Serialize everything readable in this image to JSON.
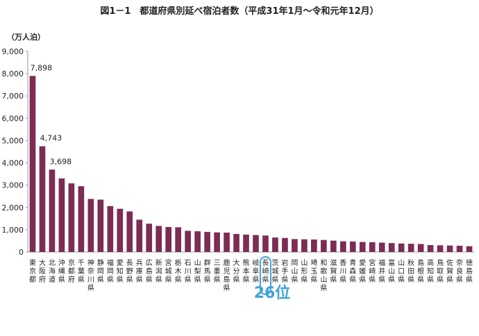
{
  "colors": {
    "bar": "#7b2d55",
    "highlight": "#3ea3d8",
    "axis": "#999999",
    "text": "#222222"
  },
  "rank_label": "26位",
  "chart_data": {
    "type": "bar",
    "title": "図1－1　都道府県別延べ宿泊者数（平成31年1月～令和元年12月）",
    "ylabel": "（万人泊）",
    "xlabel": "",
    "ylim": [
      0,
      9000
    ],
    "yticks": [
      0,
      1000,
      2000,
      3000,
      4000,
      5000,
      6000,
      7000,
      8000,
      9000
    ],
    "ytick_labels": [
      "0",
      "1,000",
      "2,000",
      "3,000",
      "4,000",
      "5,000",
      "6,000",
      "7,000",
      "8,000",
      "9,000"
    ],
    "grid": false,
    "categories": [
      "東京都",
      "大阪府",
      "北海道",
      "沖縄県",
      "京都府",
      "千葉県",
      "神奈川県",
      "静岡県",
      "福岡県",
      "愛知県",
      "長野県",
      "兵庫県",
      "広島県",
      "新潟県",
      "宮城県",
      "栃木県",
      "石川県",
      "山梨県",
      "群馬県",
      "三重県",
      "鹿児島県",
      "大分県",
      "熊本県",
      "岐阜県",
      "長崎県",
      "茨城県",
      "岩手県",
      "岡山県",
      "山形県",
      "埼玉県",
      "和歌山県",
      "滋賀県",
      "香川県",
      "青森県",
      "愛媛県",
      "宮崎県",
      "福井県",
      "富山県",
      "山口県",
      "秋田県",
      "島根県",
      "高知県",
      "鳥取県",
      "佐賀県",
      "奈良県",
      "徳島県"
    ],
    "values": [
      7898,
      4743,
      3698,
      3300,
      3080,
      2950,
      2380,
      2350,
      2060,
      1940,
      1820,
      1450,
      1270,
      1170,
      1120,
      1110,
      950,
      930,
      900,
      880,
      870,
      810,
      780,
      760,
      740,
      650,
      630,
      580,
      570,
      560,
      540,
      510,
      480,
      470,
      450,
      440,
      420,
      400,
      380,
      370,
      360,
      310,
      300,
      290,
      280,
      260
    ],
    "data_labels": [
      {
        "index": 0,
        "text": "7,898"
      },
      {
        "index": 1,
        "text": "4,743"
      },
      {
        "index": 2,
        "text": "3,698"
      }
    ],
    "highlight_index": 24
  }
}
